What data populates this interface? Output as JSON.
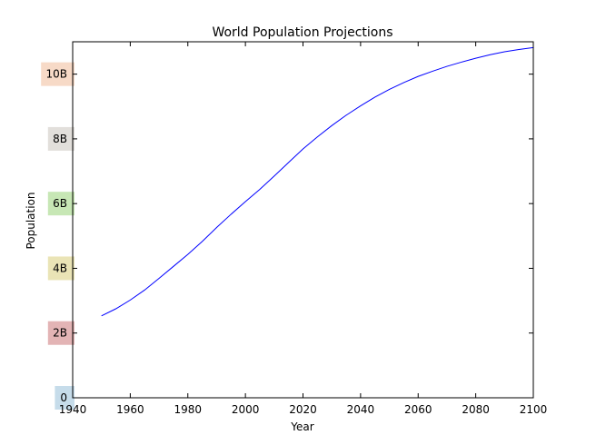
{
  "chart_data": {
    "type": "line",
    "title": "World Population Projections",
    "xlabel": "Year",
    "ylabel": "Population",
    "xlim": [
      1940,
      2100
    ],
    "ylim": [
      0,
      11
    ],
    "grid": false,
    "x_ticks": [
      1940,
      1960,
      1980,
      2000,
      2020,
      2040,
      2060,
      2080,
      2100
    ],
    "x_tick_labels": [
      "1940",
      "1960",
      "1980",
      "2000",
      "2020",
      "2040",
      "2060",
      "2080",
      "2100"
    ],
    "y_ticks": [
      0,
      2,
      4,
      6,
      8,
      10
    ],
    "y_tick_labels": [
      "0",
      "2B",
      "4B",
      "6B",
      "8B",
      "10B"
    ],
    "y_tick_label_colors": [
      "#bcd6e6",
      "#dea7a8",
      "#e6dfa9",
      "#bde3a8",
      "#ddd9d5",
      "#f6d3bd"
    ],
    "series_color": "#0000ff",
    "x": [
      1950,
      1955,
      1960,
      1965,
      1970,
      1975,
      1980,
      1985,
      1990,
      1995,
      2000,
      2005,
      2010,
      2015,
      2020,
      2025,
      2030,
      2035,
      2040,
      2045,
      2050,
      2055,
      2060,
      2065,
      2070,
      2075,
      2080,
      2085,
      2090,
      2095,
      2100
    ],
    "y": [
      2.53,
      2.75,
      3.02,
      3.33,
      3.69,
      4.06,
      4.43,
      4.83,
      5.26,
      5.67,
      6.06,
      6.44,
      6.85,
      7.27,
      7.69,
      8.06,
      8.41,
      8.73,
      9.02,
      9.29,
      9.53,
      9.74,
      9.93,
      10.09,
      10.24,
      10.37,
      10.49,
      10.6,
      10.69,
      10.76,
      10.82
    ]
  }
}
